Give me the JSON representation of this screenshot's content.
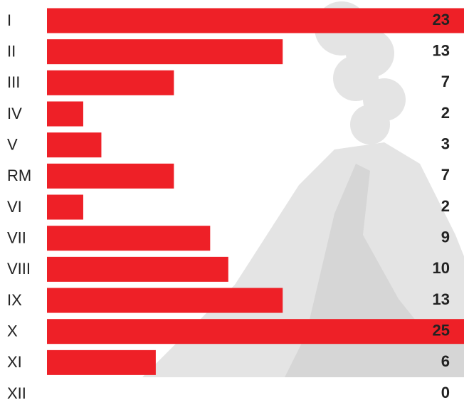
{
  "chart_data": {
    "type": "bar",
    "orientation": "horizontal",
    "categories": [
      "I",
      "II",
      "III",
      "IV",
      "V",
      "RM",
      "VI",
      "VII",
      "VIII",
      "IX",
      "X",
      "XI",
      "XII"
    ],
    "values": [
      23,
      13,
      7,
      2,
      3,
      7,
      2,
      9,
      10,
      13,
      25,
      6,
      0
    ],
    "color": "#ee2027"
  }
}
